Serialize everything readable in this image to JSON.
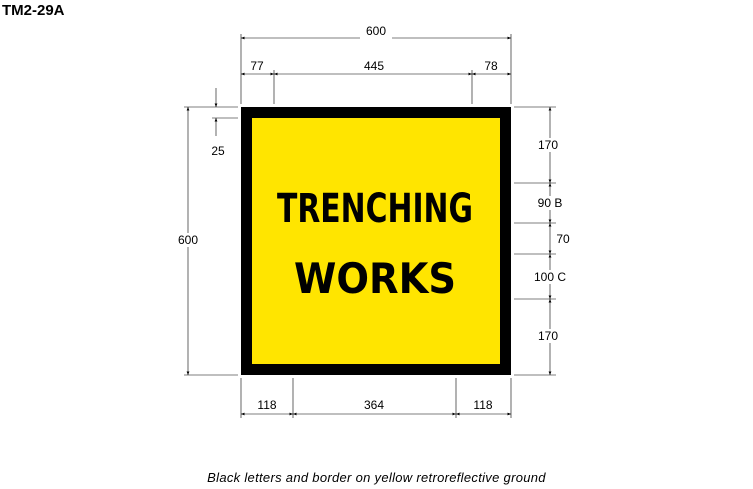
{
  "sign_code": "TM2-29A",
  "sign": {
    "line1": "TRENCHING",
    "line2": "WORKS",
    "background_color": "#FFE500",
    "border_color": "#000000",
    "text_color": "#000000"
  },
  "dimensions": {
    "top_overall": "600",
    "top_left": "77",
    "top_middle": "445",
    "top_right": "78",
    "left_overall": "600",
    "left_border": "25",
    "right_1": "170",
    "right_2": "90 B",
    "right_3": "70",
    "right_4": "100 C",
    "right_5": "170",
    "bottom_left": "118",
    "bottom_middle": "364",
    "bottom_right": "118"
  },
  "caption": "Black letters and border on yellow retroreflective ground"
}
